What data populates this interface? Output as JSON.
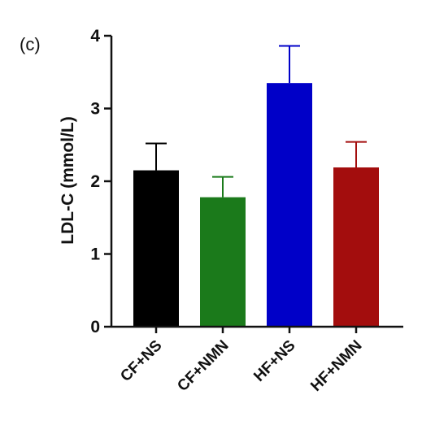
{
  "panel_label": "(c)",
  "chart_data": {
    "type": "bar",
    "title": "",
    "xlabel": "",
    "ylabel": "LDL-C (mmol/L)",
    "ylim": [
      0,
      4
    ],
    "yticks": [
      0,
      1,
      2,
      3,
      4
    ],
    "grid": false,
    "categories": [
      "CF+NS",
      "CF+NMN",
      "HF+NS",
      "HF+NMN"
    ],
    "values": [
      2.15,
      1.78,
      3.35,
      2.19
    ],
    "errors": [
      0.37,
      0.28,
      0.51,
      0.35
    ],
    "colors": [
      "#000000",
      "#1b7a1b",
      "#0000c8",
      "#a30d0d"
    ]
  }
}
